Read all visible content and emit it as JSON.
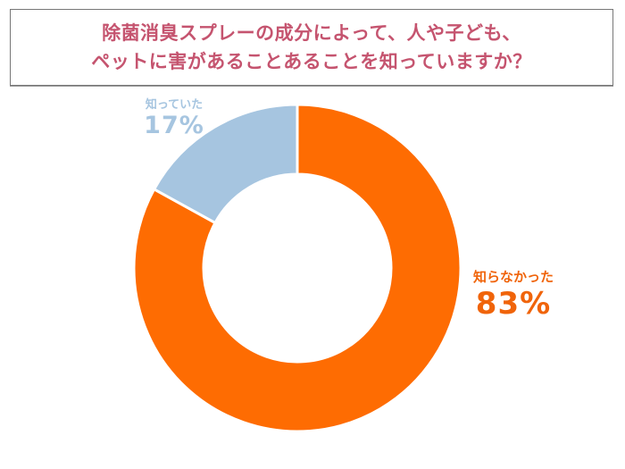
{
  "title": {
    "line1": "除菌消臭スプレーの成分によって、人や子ども、",
    "line2": "ペットに害があることあることを知っていますか？"
  },
  "colors": {
    "title": "#c5546f",
    "knew": "#a6c5e0",
    "knew_label": "#a6c5e0",
    "didnt_know": "#fe6c02",
    "didnt_know_label": "#f0640a",
    "border": "#777777"
  },
  "labels": {
    "knew": {
      "name": "知っていた",
      "pct": "17%"
    },
    "didnt_know": {
      "name": "知らなかった",
      "pct": "83%"
    }
  },
  "chart_data": {
    "type": "pie",
    "variant": "donut",
    "title": "除菌消臭スプレーの成分によって、人や子ども、ペットに害があることあることを知っていますか？",
    "categories": [
      "知らなかった",
      "知っていた"
    ],
    "values": [
      83,
      17
    ],
    "unit": "%",
    "colors": [
      "#fe6c02",
      "#a6c5e0"
    ],
    "start_angle": "12 o'clock, clockwise",
    "legend": "none (direct labels)"
  }
}
